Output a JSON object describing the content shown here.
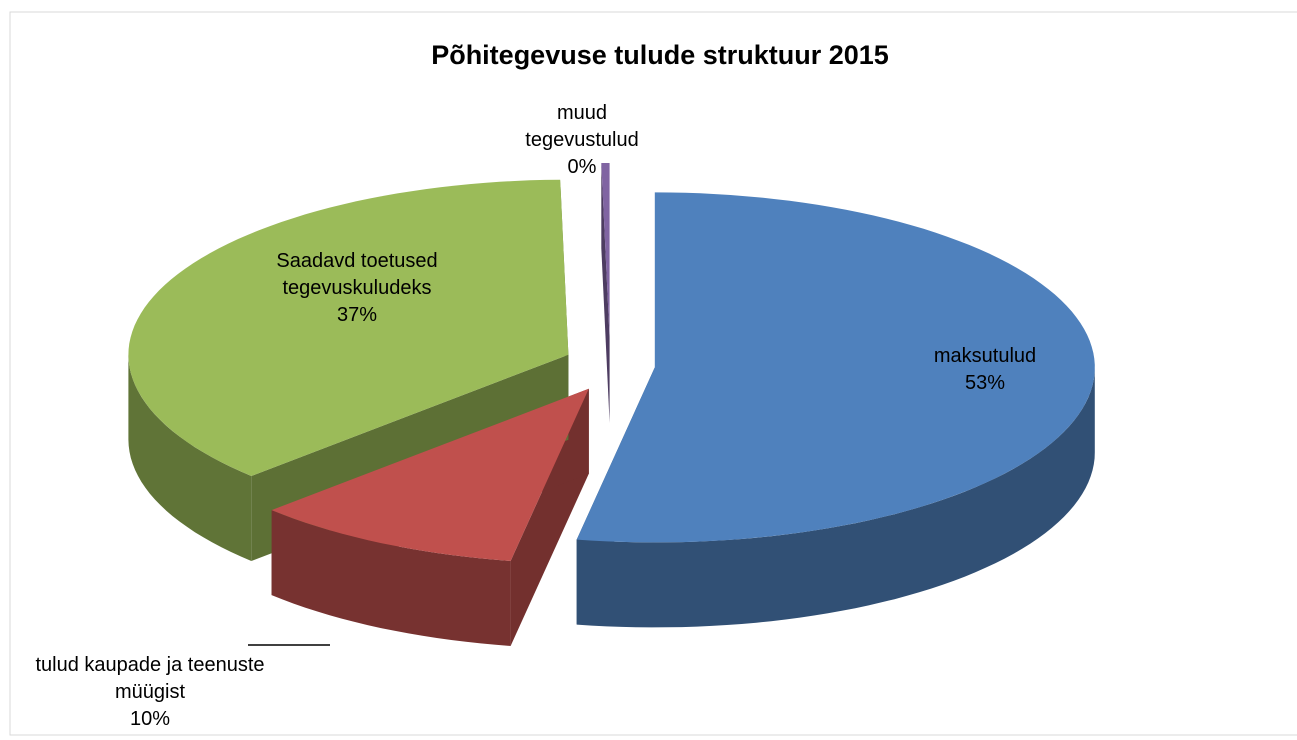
{
  "chart_data": {
    "type": "pie",
    "title": "Põhitegevuse tulude struktuur 2015",
    "categories": [
      "maksutulud",
      "tulud kaupade ja teenuste müügist",
      "Saadavd toetused tegevuskuludeks",
      "muud tegevustulud"
    ],
    "values": [
      53,
      10,
      37,
      0.3
    ],
    "value_labels": [
      "53%",
      "10%",
      "37%",
      "0%"
    ],
    "colors": [
      "#4f81bd",
      "#c0504d",
      "#9bbb59",
      "#8064a2"
    ]
  }
}
